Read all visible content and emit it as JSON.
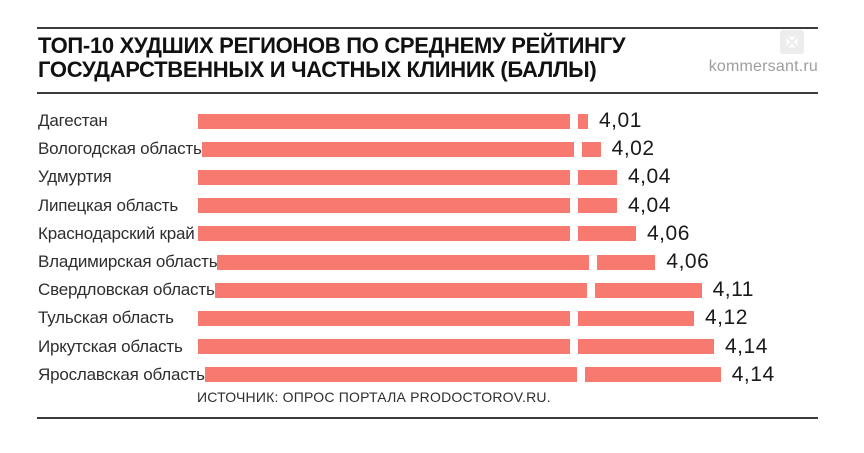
{
  "header": {
    "title_line1": "ТОП-10 ХУДШИХ РЕГИОНОВ ПО СРЕДНЕМУ РЕЙТИНГУ",
    "title_line2": "ГОСУДАРСТВЕННЫХ И ЧАСТНЫХ КЛИНИК (БАЛЛЫ)",
    "brand": "kommersant.ru"
  },
  "chart_data": {
    "type": "bar",
    "orientation": "horizontal",
    "title": "ТОП-10 ХУДШИХ РЕГИОНОВ ПО СРЕДНЕМУ РЕЙТИНГУ ГОСУДАРСТВЕННЫХ И ЧАСТНЫХ КЛИНИК (БАЛЛЫ)",
    "categories": [
      "Дагестан",
      "Вологодская область",
      "Удмуртия",
      "Липецкая область",
      "Краснодарский край",
      "Владимирская область",
      "Свердловская область",
      "Тульская область",
      "Иркутская область",
      "Ярославская область"
    ],
    "values": [
      4.01,
      4.02,
      4.04,
      4.04,
      4.06,
      4.06,
      4.11,
      4.12,
      4.14,
      4.14
    ],
    "value_labels": [
      "4,01",
      "4,02",
      "4,04",
      "4,04",
      "4,06",
      "4,06",
      "4,11",
      "4,12",
      "4,14",
      "4,14"
    ],
    "xlabel": "",
    "ylabel": "",
    "axis_break": true,
    "axis_break_note": "bars truncated near end; tip segment shows value above 4.00",
    "bar_color": "#f8796f",
    "grid": false,
    "legend": false
  },
  "footer": {
    "source": "ИСТОЧНИК: ОПРОС ПОРТАЛА PRODOCTOROV.RU."
  }
}
